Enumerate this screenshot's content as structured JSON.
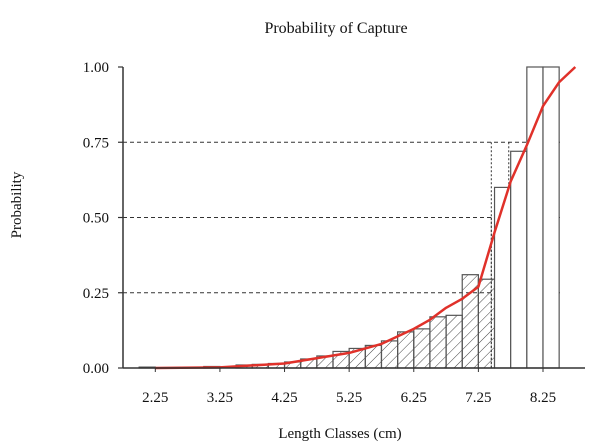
{
  "chart_data": {
    "type": "bar",
    "title": "Probability of Capture",
    "xlabel": "Length Classes (cm)",
    "ylabel": "Probability",
    "xlim": [
      1.75,
      8.9
    ],
    "ylim": [
      0,
      1
    ],
    "x_ticks": [
      "2.25",
      "3.25",
      "4.25",
      "5.25",
      "6.25",
      "7.25",
      "8.25"
    ],
    "y_ticks": [
      "0.00",
      "0.25",
      "0.50",
      "0.75",
      "1.00"
    ],
    "reference_lines": [
      0.25,
      0.5,
      0.75
    ],
    "bin_width": 0.25,
    "bars": {
      "x": [
        2.125,
        3.125,
        3.625,
        3.875,
        4.125,
        4.375,
        4.625,
        4.875,
        5.125,
        5.375,
        5.625,
        5.875,
        6.125,
        6.375,
        6.625,
        6.875,
        7.125,
        7.375,
        7.625,
        7.875,
        8.125,
        8.375
      ],
      "values": [
        0.003,
        0.005,
        0.01,
        0.012,
        0.015,
        0.02,
        0.03,
        0.04,
        0.055,
        0.065,
        0.075,
        0.09,
        0.12,
        0.13,
        0.17,
        0.175,
        0.31,
        0.295,
        0.6,
        0.72,
        1.0,
        1.0
      ]
    },
    "curve": {
      "x": [
        2.25,
        3.25,
        4.25,
        5.25,
        5.75,
        6.25,
        6.5,
        6.75,
        7.0,
        7.25,
        7.5,
        7.75,
        8.0,
        8.25,
        8.5,
        8.75
      ],
      "values": [
        0.0,
        0.002,
        0.015,
        0.05,
        0.08,
        0.13,
        0.16,
        0.2,
        0.23,
        0.27,
        0.45,
        0.62,
        0.74,
        0.87,
        0.95,
        1.0
      ]
    },
    "colors": {
      "curve": "#e0312a",
      "bars": "#555555",
      "axes": "#333333"
    }
  }
}
